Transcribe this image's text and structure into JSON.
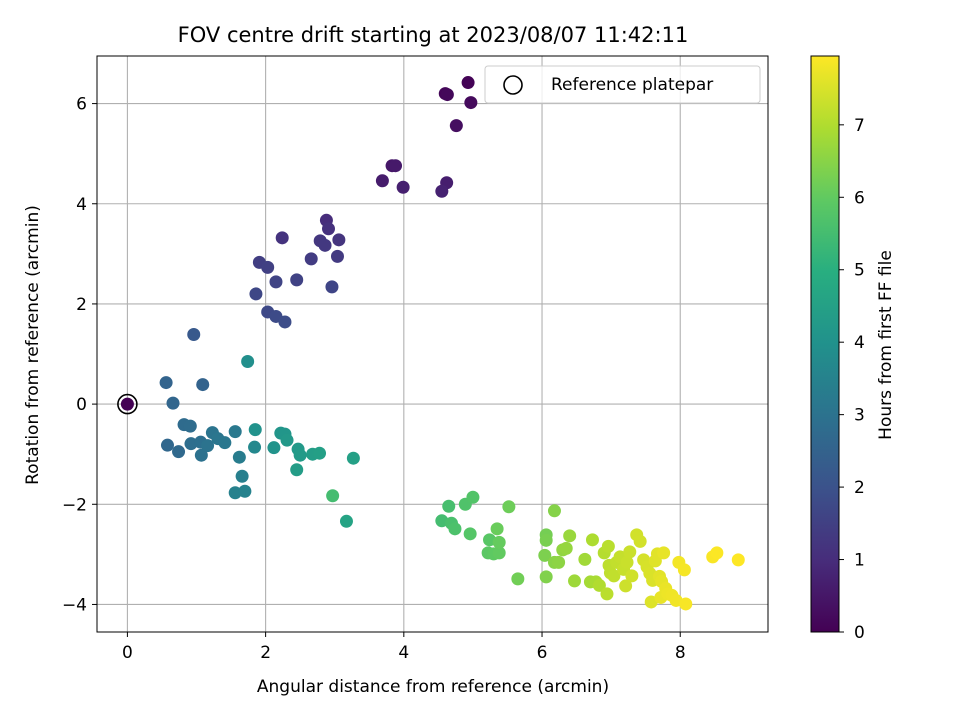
{
  "chart_data": {
    "type": "scatter",
    "title": "FOV centre drift starting at 2023/08/07 11:42:11",
    "xlabel": "Angular distance from reference (arcmin)",
    "ylabel": "Rotation from reference (arcmin)",
    "xlim": [
      -0.44,
      9.27
    ],
    "ylim": [
      -4.55,
      6.95
    ],
    "xticks": [
      "0",
      "2",
      "4",
      "6",
      "8"
    ],
    "xtick_values": [
      0,
      2,
      4,
      6,
      8
    ],
    "yticks": [
      "−4",
      "−2",
      "0",
      "2",
      "4",
      "6"
    ],
    "ytick_values": [
      -4,
      -2,
      0,
      2,
      4,
      6
    ],
    "grid": true,
    "legend": {
      "placement": "top-right",
      "entries": [
        "Reference platepar"
      ]
    },
    "reference_point": {
      "x": 0,
      "y": 0
    },
    "colorbar": {
      "label": "Hours from first FF file",
      "colormap": "viridis",
      "range": [
        0,
        7.95
      ],
      "ticks": [
        "0",
        "1",
        "2",
        "3",
        "4",
        "5",
        "6",
        "7"
      ],
      "tick_values": [
        0,
        1,
        2,
        3,
        4,
        5,
        6,
        7
      ]
    },
    "points": [
      {
        "x": 0.0,
        "y": 0.0,
        "t": 0.0
      },
      {
        "x": 4.93,
        "y": 6.42,
        "t": 0.05
      },
      {
        "x": 4.6,
        "y": 6.2,
        "t": 0.1
      },
      {
        "x": 4.63,
        "y": 6.18,
        "t": 0.15
      },
      {
        "x": 4.97,
        "y": 6.02,
        "t": 0.2
      },
      {
        "x": 4.76,
        "y": 5.56,
        "t": 0.3
      },
      {
        "x": 3.83,
        "y": 4.76,
        "t": 0.5
      },
      {
        "x": 3.88,
        "y": 4.76,
        "t": 0.55
      },
      {
        "x": 3.69,
        "y": 4.46,
        "t": 0.6
      },
      {
        "x": 4.62,
        "y": 4.42,
        "t": 0.65
      },
      {
        "x": 3.99,
        "y": 4.33,
        "t": 0.7
      },
      {
        "x": 4.55,
        "y": 4.25,
        "t": 0.75
      },
      {
        "x": 2.88,
        "y": 3.67,
        "t": 1.0
      },
      {
        "x": 2.91,
        "y": 3.5,
        "t": 1.1
      },
      {
        "x": 2.24,
        "y": 3.32,
        "t": 1.15
      },
      {
        "x": 3.06,
        "y": 3.28,
        "t": 1.2
      },
      {
        "x": 2.79,
        "y": 3.26,
        "t": 1.25
      },
      {
        "x": 2.86,
        "y": 3.17,
        "t": 1.3
      },
      {
        "x": 3.04,
        "y": 2.95,
        "t": 1.35
      },
      {
        "x": 2.66,
        "y": 2.9,
        "t": 1.4
      },
      {
        "x": 1.91,
        "y": 2.83,
        "t": 1.45
      },
      {
        "x": 2.03,
        "y": 2.73,
        "t": 1.5
      },
      {
        "x": 2.45,
        "y": 2.48,
        "t": 1.55
      },
      {
        "x": 2.15,
        "y": 2.44,
        "t": 1.6
      },
      {
        "x": 2.96,
        "y": 2.34,
        "t": 1.65
      },
      {
        "x": 1.86,
        "y": 2.2,
        "t": 1.7
      },
      {
        "x": 2.03,
        "y": 1.84,
        "t": 1.75
      },
      {
        "x": 2.15,
        "y": 1.75,
        "t": 1.8
      },
      {
        "x": 2.28,
        "y": 1.64,
        "t": 1.85
      },
      {
        "x": 0.96,
        "y": 1.39,
        "t": 2.2
      },
      {
        "x": 1.09,
        "y": 0.39,
        "t": 2.5
      },
      {
        "x": 0.56,
        "y": 0.43,
        "t": 2.55
      },
      {
        "x": 0.66,
        "y": 0.02,
        "t": 2.6
      },
      {
        "x": 0.58,
        "y": -0.82,
        "t": 2.65
      },
      {
        "x": 0.74,
        "y": -0.95,
        "t": 2.7
      },
      {
        "x": 0.82,
        "y": -0.41,
        "t": 2.75
      },
      {
        "x": 0.91,
        "y": -0.44,
        "t": 2.8
      },
      {
        "x": 0.92,
        "y": -0.79,
        "t": 2.85
      },
      {
        "x": 1.06,
        "y": -0.76,
        "t": 2.9
      },
      {
        "x": 1.07,
        "y": -1.02,
        "t": 2.95
      },
      {
        "x": 1.16,
        "y": -0.83,
        "t": 3.0
      },
      {
        "x": 1.23,
        "y": -0.57,
        "t": 3.05
      },
      {
        "x": 1.31,
        "y": -0.69,
        "t": 3.1
      },
      {
        "x": 1.41,
        "y": -0.77,
        "t": 3.15
      },
      {
        "x": 1.56,
        "y": -0.55,
        "t": 3.2
      },
      {
        "x": 1.62,
        "y": -1.06,
        "t": 3.3
      },
      {
        "x": 1.66,
        "y": -1.44,
        "t": 3.4
      },
      {
        "x": 1.56,
        "y": -1.77,
        "t": 3.45
      },
      {
        "x": 1.7,
        "y": -1.74,
        "t": 3.5
      },
      {
        "x": 1.84,
        "y": -0.86,
        "t": 3.7
      },
      {
        "x": 1.74,
        "y": 0.85,
        "t": 3.9
      },
      {
        "x": 1.85,
        "y": -0.51,
        "t": 4.0
      },
      {
        "x": 2.12,
        "y": -0.87,
        "t": 4.05
      },
      {
        "x": 2.22,
        "y": -0.58,
        "t": 4.1
      },
      {
        "x": 2.28,
        "y": -0.6,
        "t": 4.15
      },
      {
        "x": 2.31,
        "y": -0.72,
        "t": 4.2
      },
      {
        "x": 2.47,
        "y": -0.9,
        "t": 4.25
      },
      {
        "x": 2.5,
        "y": -1.02,
        "t": 4.3
      },
      {
        "x": 2.45,
        "y": -1.31,
        "t": 4.35
      },
      {
        "x": 2.68,
        "y": -1.0,
        "t": 4.4
      },
      {
        "x": 2.78,
        "y": -0.98,
        "t": 4.45
      },
      {
        "x": 3.27,
        "y": -1.08,
        "t": 4.5
      },
      {
        "x": 3.17,
        "y": -2.34,
        "t": 4.6
      },
      {
        "x": 2.97,
        "y": -1.83,
        "t": 5.5
      },
      {
        "x": 4.55,
        "y": -2.33,
        "t": 5.5
      },
      {
        "x": 4.65,
        "y": -2.04,
        "t": 5.55
      },
      {
        "x": 4.69,
        "y": -2.38,
        "t": 5.6
      },
      {
        "x": 4.74,
        "y": -2.49,
        "t": 5.65
      },
      {
        "x": 4.89,
        "y": -2.0,
        "t": 5.7
      },
      {
        "x": 5.0,
        "y": -1.86,
        "t": 5.75
      },
      {
        "x": 4.96,
        "y": -2.59,
        "t": 5.8
      },
      {
        "x": 5.24,
        "y": -2.71,
        "t": 5.85
      },
      {
        "x": 5.22,
        "y": -2.97,
        "t": 5.9
      },
      {
        "x": 5.3,
        "y": -2.99,
        "t": 5.95
      },
      {
        "x": 5.38,
        "y": -2.97,
        "t": 6.0
      },
      {
        "x": 5.38,
        "y": -2.76,
        "t": 6.05
      },
      {
        "x": 5.35,
        "y": -2.49,
        "t": 6.1
      },
      {
        "x": 5.52,
        "y": -2.05,
        "t": 6.15
      },
      {
        "x": 5.65,
        "y": -3.49,
        "t": 6.2
      },
      {
        "x": 6.06,
        "y": -2.61,
        "t": 6.25
      },
      {
        "x": 6.06,
        "y": -2.72,
        "t": 6.3
      },
      {
        "x": 6.04,
        "y": -3.02,
        "t": 6.35
      },
      {
        "x": 6.06,
        "y": -3.45,
        "t": 6.4
      },
      {
        "x": 6.18,
        "y": -2.13,
        "t": 6.45
      },
      {
        "x": 6.18,
        "y": -3.16,
        "t": 6.5
      },
      {
        "x": 6.24,
        "y": -3.16,
        "t": 6.55
      },
      {
        "x": 6.3,
        "y": -2.91,
        "t": 6.6
      },
      {
        "x": 6.35,
        "y": -2.88,
        "t": 6.65
      },
      {
        "x": 6.4,
        "y": -2.63,
        "t": 6.7
      },
      {
        "x": 6.47,
        "y": -3.53,
        "t": 6.75
      },
      {
        "x": 6.62,
        "y": -3.1,
        "t": 6.8
      },
      {
        "x": 6.7,
        "y": -3.55,
        "t": 6.85
      },
      {
        "x": 6.78,
        "y": -3.55,
        "t": 6.9
      },
      {
        "x": 6.73,
        "y": -2.71,
        "t": 6.95
      },
      {
        "x": 6.83,
        "y": -3.62,
        "t": 7.0
      },
      {
        "x": 6.9,
        "y": -2.97,
        "t": 7.05
      },
      {
        "x": 6.96,
        "y": -2.84,
        "t": 7.1
      },
      {
        "x": 6.94,
        "y": -3.79,
        "t": 7.12
      },
      {
        "x": 6.97,
        "y": -3.22,
        "t": 7.15
      },
      {
        "x": 6.99,
        "y": -3.37,
        "t": 7.18
      },
      {
        "x": 7.04,
        "y": -3.43,
        "t": 7.2
      },
      {
        "x": 7.08,
        "y": -3.16,
        "t": 7.22
      },
      {
        "x": 7.13,
        "y": -3.05,
        "t": 7.25
      },
      {
        "x": 7.18,
        "y": -3.3,
        "t": 7.28
      },
      {
        "x": 7.23,
        "y": -3.16,
        "t": 7.3
      },
      {
        "x": 7.27,
        "y": -2.95,
        "t": 7.32
      },
      {
        "x": 7.21,
        "y": -3.63,
        "t": 7.35
      },
      {
        "x": 7.3,
        "y": -3.43,
        "t": 7.38
      },
      {
        "x": 7.37,
        "y": -2.61,
        "t": 7.4
      },
      {
        "x": 7.42,
        "y": -2.74,
        "t": 7.42
      },
      {
        "x": 7.47,
        "y": -3.11,
        "t": 7.45
      },
      {
        "x": 7.52,
        "y": -3.25,
        "t": 7.48
      },
      {
        "x": 7.56,
        "y": -3.38,
        "t": 7.5
      },
      {
        "x": 7.6,
        "y": -3.52,
        "t": 7.52
      },
      {
        "x": 7.58,
        "y": -3.95,
        "t": 7.55
      },
      {
        "x": 7.64,
        "y": -3.13,
        "t": 7.58
      },
      {
        "x": 7.67,
        "y": -2.99,
        "t": 7.6
      },
      {
        "x": 7.7,
        "y": -3.44,
        "t": 7.62
      },
      {
        "x": 7.73,
        "y": -3.54,
        "t": 7.65
      },
      {
        "x": 7.76,
        "y": -2.97,
        "t": 7.68
      },
      {
        "x": 7.72,
        "y": -3.86,
        "t": 7.7
      },
      {
        "x": 7.79,
        "y": -3.68,
        "t": 7.72
      },
      {
        "x": 7.82,
        "y": -3.79,
        "t": 7.75
      },
      {
        "x": 7.88,
        "y": -3.82,
        "t": 7.78
      },
      {
        "x": 7.94,
        "y": -3.92,
        "t": 7.8
      },
      {
        "x": 7.98,
        "y": -3.16,
        "t": 7.82
      },
      {
        "x": 8.06,
        "y": -3.31,
        "t": 7.85
      },
      {
        "x": 8.08,
        "y": -3.99,
        "t": 7.88
      },
      {
        "x": 8.47,
        "y": -3.05,
        "t": 7.9
      },
      {
        "x": 8.53,
        "y": -2.97,
        "t": 7.92
      },
      {
        "x": 8.84,
        "y": -3.11,
        "t": 7.95
      }
    ]
  }
}
